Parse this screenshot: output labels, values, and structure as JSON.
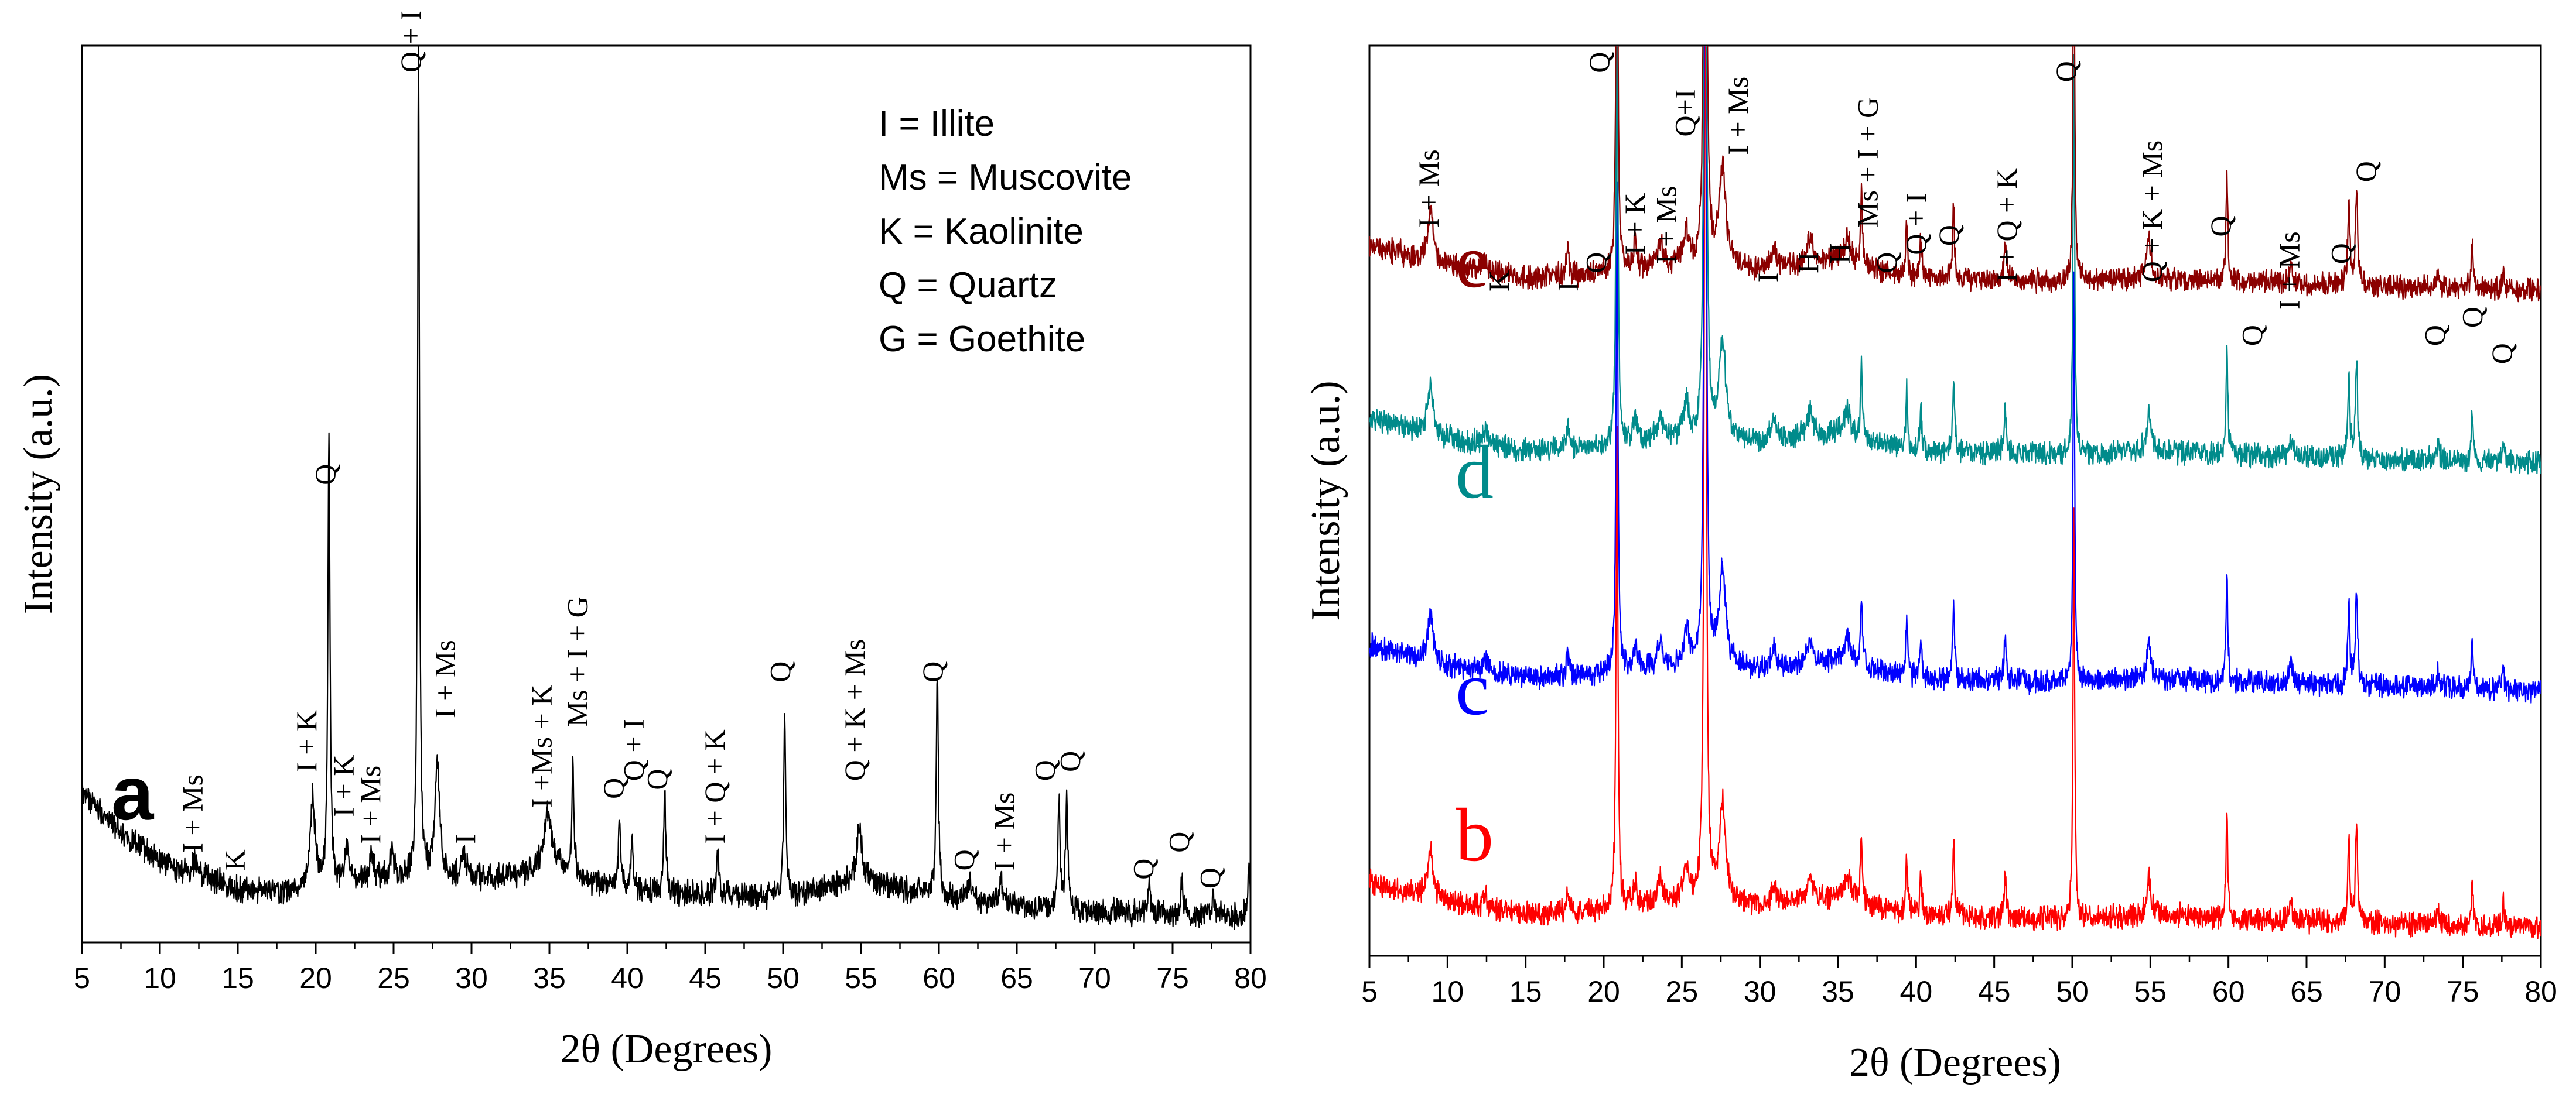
{
  "chart_data": [
    {
      "panel": "a",
      "type": "line",
      "panel_label": "a",
      "xlabel": "2θ (Degrees)",
      "ylabel": "Intensity (a.u.)",
      "xlim": [
        5,
        80
      ],
      "ylim": [
        0,
        1
      ],
      "x_ticks": [
        5,
        10,
        15,
        20,
        25,
        30,
        35,
        40,
        45,
        50,
        55,
        60,
        65,
        70,
        75,
        80
      ],
      "legend": [
        "I = Illite",
        "Ms = Muscovite",
        "K = Kaolinite",
        "Q = Quartz",
        "G = Goethite"
      ],
      "color": "#000000",
      "background": [
        [
          5,
          0.17
        ],
        [
          6,
          0.15
        ],
        [
          8,
          0.115
        ],
        [
          10,
          0.09
        ],
        [
          12,
          0.075
        ],
        [
          15,
          0.06
        ],
        [
          18,
          0.055
        ],
        [
          20,
          0.06
        ],
        [
          25,
          0.07
        ],
        [
          28,
          0.07
        ],
        [
          30,
          0.07
        ],
        [
          33,
          0.075
        ],
        [
          35,
          0.085
        ],
        [
          38,
          0.065
        ],
        [
          42,
          0.055
        ],
        [
          50,
          0.05
        ],
        [
          55,
          0.07
        ],
        [
          60,
          0.05
        ],
        [
          65,
          0.04
        ],
        [
          70,
          0.035
        ],
        [
          75,
          0.03
        ],
        [
          80,
          0.03
        ]
      ],
      "peaks": [
        {
          "x": 12.3,
          "h": 0.02,
          "w": 0.25
        },
        {
          "x": 19.8,
          "h": 0.1,
          "w": 0.2
        },
        {
          "x": 20.85,
          "h": 0.5,
          "w": 0.08
        },
        {
          "x": 22.0,
          "h": 0.04,
          "w": 0.15
        },
        {
          "x": 23.6,
          "h": 0.03,
          "w": 0.15
        },
        {
          "x": 24.9,
          "h": 0.03,
          "w": 0.15
        },
        {
          "x": 26.6,
          "h": 0.95,
          "w": 0.07
        },
        {
          "x": 27.8,
          "h": 0.13,
          "w": 0.18
        },
        {
          "x": 29.5,
          "h": 0.03,
          "w": 0.2
        },
        {
          "x": 34.9,
          "h": 0.06,
          "w": 0.3
        },
        {
          "x": 36.5,
          "h": 0.12,
          "w": 0.08
        },
        {
          "x": 39.5,
          "h": 0.08,
          "w": 0.08
        },
        {
          "x": 40.3,
          "h": 0.05,
          "w": 0.08
        },
        {
          "x": 42.4,
          "h": 0.12,
          "w": 0.08
        },
        {
          "x": 45.8,
          "h": 0.05,
          "w": 0.1
        },
        {
          "x": 50.1,
          "h": 0.2,
          "w": 0.08
        },
        {
          "x": 54.9,
          "h": 0.06,
          "w": 0.2
        },
        {
          "x": 59.9,
          "h": 0.25,
          "w": 0.08
        },
        {
          "x": 62.0,
          "h": 0.02,
          "w": 0.2
        },
        {
          "x": 64.0,
          "h": 0.025,
          "w": 0.15
        },
        {
          "x": 67.7,
          "h": 0.12,
          "w": 0.08
        },
        {
          "x": 68.2,
          "h": 0.13,
          "w": 0.08
        },
        {
          "x": 73.5,
          "h": 0.03,
          "w": 0.12
        },
        {
          "x": 75.6,
          "h": 0.04,
          "w": 0.08
        },
        {
          "x": 77.6,
          "h": 0.02,
          "w": 0.08
        },
        {
          "x": 79.9,
          "h": 0.06,
          "w": 0.08
        }
      ],
      "annotations": [
        {
          "text": "I + Ms",
          "x": 12.3,
          "y": 0.1
        },
        {
          "text": "K",
          "x": 15.0,
          "y": 0.08
        },
        {
          "text": "I + K",
          "x": 19.6,
          "y": 0.19
        },
        {
          "text": "Q",
          "x": 20.8,
          "y": 0.51
        },
        {
          "text": "I + K",
          "x": 22.0,
          "y": 0.14
        },
        {
          "text": "I + Ms",
          "x": 23.7,
          "y": 0.11
        },
        {
          "text": "Q + I",
          "x": 26.3,
          "y": 0.97
        },
        {
          "text": "I + Ms",
          "x": 28.5,
          "y": 0.25
        },
        {
          "text": "I",
          "x": 29.8,
          "y": 0.11
        },
        {
          "text": "I +Ms + K",
          "x": 34.7,
          "y": 0.15
        },
        {
          "text": "Ms + I + G",
          "x": 37.0,
          "y": 0.24
        },
        {
          "text": "Q",
          "x": 39.3,
          "y": 0.16
        },
        {
          "text": "Q + I",
          "x": 40.6,
          "y": 0.18
        },
        {
          "text": "Q",
          "x": 42.1,
          "y": 0.17
        },
        {
          "text": "I + Q + K",
          "x": 45.8,
          "y": 0.11
        },
        {
          "text": "Q",
          "x": 50.0,
          "y": 0.29
        },
        {
          "text": "Q + K + Ms",
          "x": 54.8,
          "y": 0.18
        },
        {
          "text": "Q",
          "x": 59.8,
          "y": 0.29
        },
        {
          "text": "Q",
          "x": 61.8,
          "y": 0.08
        },
        {
          "text": "I + Ms",
          "x": 64.4,
          "y": 0.08
        },
        {
          "text": "Q",
          "x": 67.0,
          "y": 0.18
        },
        {
          "text": "Q",
          "x": 68.6,
          "y": 0.19
        },
        {
          "text": "Q",
          "x": 73.3,
          "y": 0.07
        },
        {
          "text": "Q",
          "x": 75.6,
          "y": 0.1
        },
        {
          "text": "Q",
          "x": 77.6,
          "y": 0.06
        }
      ]
    },
    {
      "panel": "b-e",
      "type": "line",
      "xlabel": "2θ (Degrees)",
      "ylabel": "Intensity (a.u.)",
      "xlim": [
        5,
        80
      ],
      "ylim": [
        0,
        1
      ],
      "x_ticks": [
        5,
        10,
        15,
        20,
        25,
        30,
        35,
        40,
        45,
        50,
        55,
        60,
        65,
        70,
        75,
        80
      ],
      "series": [
        {
          "name": "b",
          "color": "#ff0000",
          "offset": 0.0
        },
        {
          "name": "c",
          "color": "#0000ff",
          "offset": 0.26
        },
        {
          "name": "d",
          "color": "#008b8b",
          "offset": 0.51
        },
        {
          "name": "e",
          "color": "#8b0000",
          "offset": 0.7
        }
      ],
      "background": [
        [
          5,
          0.09
        ],
        [
          7,
          0.08
        ],
        [
          10,
          0.065
        ],
        [
          15,
          0.05
        ],
        [
          20,
          0.055
        ],
        [
          25,
          0.065
        ],
        [
          30,
          0.06
        ],
        [
          35,
          0.07
        ],
        [
          40,
          0.05
        ],
        [
          50,
          0.045
        ],
        [
          55,
          0.05
        ],
        [
          60,
          0.045
        ],
        [
          70,
          0.04
        ],
        [
          80,
          0.035
        ]
      ],
      "peaks": [
        {
          "x": 8.9,
          "h": 0.06,
          "w": 0.2
        },
        {
          "x": 12.4,
          "h": 0.015,
          "w": 0.2
        },
        {
          "x": 17.7,
          "h": 0.03,
          "w": 0.1
        },
        {
          "x": 20.85,
          "h": 0.6,
          "w": 0.07
        },
        {
          "x": 22.0,
          "h": 0.03,
          "w": 0.15
        },
        {
          "x": 23.6,
          "h": 0.03,
          "w": 0.2
        },
        {
          "x": 25.3,
          "h": 0.04,
          "w": 0.2
        },
        {
          "x": 26.5,
          "h": 1.2,
          "w": 0.08
        },
        {
          "x": 27.6,
          "h": 0.12,
          "w": 0.25
        },
        {
          "x": 30.9,
          "h": 0.025,
          "w": 0.2
        },
        {
          "x": 33.2,
          "h": 0.03,
          "w": 0.25
        },
        {
          "x": 35.6,
          "h": 0.03,
          "w": 0.25
        },
        {
          "x": 36.5,
          "h": 0.09,
          "w": 0.07
        },
        {
          "x": 39.4,
          "h": 0.07,
          "w": 0.07
        },
        {
          "x": 40.3,
          "h": 0.05,
          "w": 0.07
        },
        {
          "x": 42.4,
          "h": 0.09,
          "w": 0.07
        },
        {
          "x": 45.7,
          "h": 0.05,
          "w": 0.08
        },
        {
          "x": 50.1,
          "h": 0.5,
          "w": 0.06
        },
        {
          "x": 54.9,
          "h": 0.05,
          "w": 0.15
        },
        {
          "x": 59.9,
          "h": 0.13,
          "w": 0.07
        },
        {
          "x": 64.0,
          "h": 0.025,
          "w": 0.12
        },
        {
          "x": 67.7,
          "h": 0.1,
          "w": 0.08
        },
        {
          "x": 68.2,
          "h": 0.12,
          "w": 0.08
        },
        {
          "x": 73.4,
          "h": 0.02,
          "w": 0.1
        },
        {
          "x": 75.6,
          "h": 0.06,
          "w": 0.07
        },
        {
          "x": 77.6,
          "h": 0.03,
          "w": 0.07
        }
      ],
      "annotations": [
        {
          "text": "I + Ms",
          "x": 9.0,
          "y": 0.8
        },
        {
          "text": "K",
          "x": 13.5,
          "y": 0.73
        },
        {
          "text": "I",
          "x": 17.9,
          "y": 0.73
        },
        {
          "text": "Q",
          "x": 19.7,
          "y": 0.75
        },
        {
          "text": "Q",
          "x": 19.9,
          "y": 0.97
        },
        {
          "text": "I + K",
          "x": 22.2,
          "y": 0.77
        },
        {
          "text": "I + Ms",
          "x": 24.2,
          "y": 0.76
        },
        {
          "text": "Q+I",
          "x": 25.4,
          "y": 0.9
        },
        {
          "text": "I + Ms",
          "x": 28.8,
          "y": 0.88
        },
        {
          "text": "I",
          "x": 30.7,
          "y": 0.74
        },
        {
          "text": "H",
          "x": 33.3,
          "y": 0.75
        },
        {
          "text": "H",
          "x": 35.3,
          "y": 0.76
        },
        {
          "text": "Ms + I + G",
          "x": 37.1,
          "y": 0.8
        },
        {
          "text": "Q",
          "x": 38.3,
          "y": 0.75
        },
        {
          "text": "Q + I",
          "x": 40.2,
          "y": 0.77
        },
        {
          "text": "Q",
          "x": 42.3,
          "y": 0.78
        },
        {
          "text": "I + Q + K",
          "x": 46.0,
          "y": 0.74
        },
        {
          "text": "Q",
          "x": 49.8,
          "y": 0.96
        },
        {
          "text": "Q + K + Ms",
          "x": 55.3,
          "y": 0.74
        },
        {
          "text": "Q",
          "x": 59.7,
          "y": 0.79
        },
        {
          "text": "Q",
          "x": 61.7,
          "y": 0.67
        },
        {
          "text": "I + Ms",
          "x": 64.1,
          "y": 0.71
        },
        {
          "text": "Q",
          "x": 67.4,
          "y": 0.76
        },
        {
          "text": "Q",
          "x": 69.0,
          "y": 0.85
        },
        {
          "text": "Q",
          "x": 73.4,
          "y": 0.67
        },
        {
          "text": "Q",
          "x": 75.8,
          "y": 0.69
        },
        {
          "text": "Q",
          "x": 77.7,
          "y": 0.65
        }
      ]
    }
  ]
}
